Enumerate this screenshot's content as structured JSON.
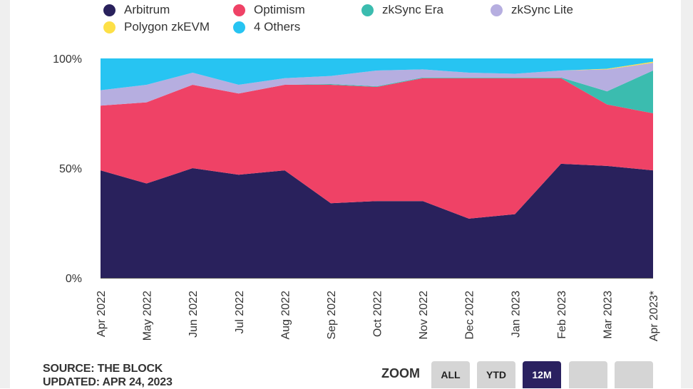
{
  "chart_data": {
    "type": "area",
    "stacked": "percent",
    "categories": [
      "Apr 2022",
      "May 2022",
      "Jun 2022",
      "Jul 2022",
      "Aug 2022",
      "Sep 2022",
      "Oct 2022",
      "Nov 2022",
      "Dec 2022",
      "Jan 2023",
      "Feb 2023",
      "Mar 2023",
      "Apr 2023*"
    ],
    "series": [
      {
        "name": "Arbitrum",
        "color": "#29215c",
        "values": [
          49,
          43,
          50,
          47,
          49,
          34,
          35,
          35,
          27,
          29,
          52,
          51,
          49
        ]
      },
      {
        "name": "Optimism",
        "color": "#ef4266",
        "values": [
          29.5,
          37,
          38,
          37,
          39,
          54,
          52,
          56,
          64,
          62,
          39,
          28,
          26
        ]
      },
      {
        "name": "zkSync Era",
        "color": "#3bbcaf",
        "values": [
          0,
          0,
          0,
          0,
          0,
          0.3,
          0.3,
          0.3,
          0.3,
          0.3,
          0.3,
          6,
          19.5
        ]
      },
      {
        "name": "zkSync Lite",
        "color": "#b6aee0",
        "values": [
          7,
          8,
          5.5,
          4,
          3,
          3.7,
          7.2,
          3.7,
          2.2,
          1.7,
          3.2,
          10,
          3.5
        ]
      },
      {
        "name": "Polygon zkEVM",
        "color": "#fde047",
        "values": [
          0,
          0,
          0,
          0,
          0,
          0,
          0,
          0,
          0,
          0,
          0,
          0.3,
          0.5
        ]
      },
      {
        "name": "4 Others",
        "color": "#27c4f2",
        "values": [
          14.5,
          12,
          6.5,
          12,
          9,
          8,
          5.5,
          5,
          6.5,
          7,
          5.5,
          4.7,
          1.5
        ]
      }
    ],
    "ylim": [
      0,
      100
    ],
    "yticks": [
      "0%",
      "50%",
      "100%"
    ],
    "grid": false,
    "legend_position": "top"
  },
  "footer": {
    "source": "SOURCE: THE BLOCK",
    "updated": "UPDATED: APR 24, 2023"
  },
  "zoom": {
    "label": "ZOOM",
    "buttons": [
      "ALL",
      "YTD",
      "12M",
      "",
      ""
    ],
    "active": "12M"
  }
}
